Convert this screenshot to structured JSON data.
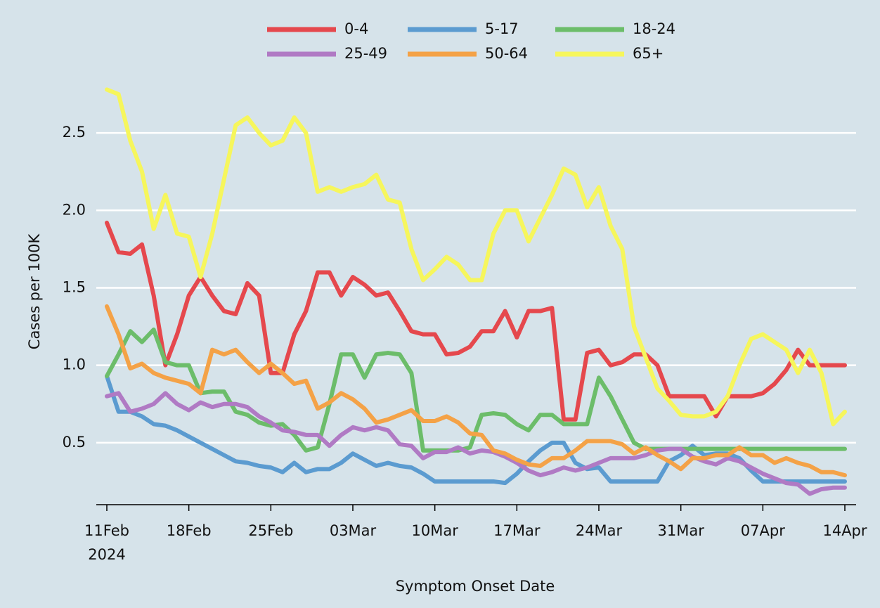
{
  "chart_data": {
    "type": "line",
    "x_label": "Symptom Onset Date",
    "y_label": "Cases per 100K",
    "x": [
      "2024-02-11",
      "2024-02-12",
      "2024-02-13",
      "2024-02-14",
      "2024-02-15",
      "2024-02-16",
      "2024-02-17",
      "2024-02-18",
      "2024-02-19",
      "2024-02-20",
      "2024-02-21",
      "2024-02-22",
      "2024-02-23",
      "2024-02-24",
      "2024-02-25",
      "2024-02-26",
      "2024-02-27",
      "2024-02-28",
      "2024-02-29",
      "2024-03-01",
      "2024-03-02",
      "2024-03-03",
      "2024-03-04",
      "2024-03-05",
      "2024-03-06",
      "2024-03-07",
      "2024-03-08",
      "2024-03-09",
      "2024-03-10",
      "2024-03-11",
      "2024-03-12",
      "2024-03-13",
      "2024-03-14",
      "2024-03-15",
      "2024-03-16",
      "2024-03-17",
      "2024-03-18",
      "2024-03-19",
      "2024-03-20",
      "2024-03-21",
      "2024-03-22",
      "2024-03-23",
      "2024-03-24",
      "2024-03-25",
      "2024-03-26",
      "2024-03-27",
      "2024-03-28",
      "2024-03-29",
      "2024-03-30",
      "2024-03-31",
      "2024-04-01",
      "2024-04-02",
      "2024-04-03",
      "2024-04-04",
      "2024-04-05",
      "2024-04-06",
      "2024-04-07",
      "2024-04-08",
      "2024-04-09",
      "2024-04-10",
      "2024-04-11",
      "2024-04-12",
      "2024-04-13",
      "2024-04-14"
    ],
    "xlim": [
      "2024-02-11",
      "2024-04-14"
    ],
    "xticks": [
      {
        "value": "2024-02-11",
        "label": "11Feb\n2024"
      },
      {
        "value": "2024-02-18",
        "label": "18Feb"
      },
      {
        "value": "2024-02-25",
        "label": "25Feb"
      },
      {
        "value": "2024-03-03",
        "label": "03Mar"
      },
      {
        "value": "2024-03-10",
        "label": "10Mar"
      },
      {
        "value": "2024-03-17",
        "label": "17Mar"
      },
      {
        "value": "2024-03-24",
        "label": "24Mar"
      },
      {
        "value": "2024-03-31",
        "label": "31Mar"
      },
      {
        "value": "2024-04-07",
        "label": "07Apr"
      },
      {
        "value": "2024-04-14",
        "label": "14Apr"
      }
    ],
    "ylim": [
      0.1,
      2.85
    ],
    "yticks": [
      {
        "value": 0.5,
        "label": "0.5"
      },
      {
        "value": 1.0,
        "label": "1.0"
      },
      {
        "value": 1.5,
        "label": "1.5"
      },
      {
        "value": 2.0,
        "label": "2.0"
      },
      {
        "value": 2.5,
        "label": "2.5"
      }
    ],
    "grid": true,
    "legend": "top",
    "series": [
      {
        "name": "0-4",
        "color": "#e5484d",
        "values": [
          1.92,
          1.73,
          1.72,
          1.78,
          1.45,
          1.0,
          1.2,
          1.45,
          1.57,
          1.45,
          1.35,
          1.33,
          1.53,
          1.45,
          0.95,
          0.95,
          1.2,
          1.35,
          1.6,
          1.6,
          1.45,
          1.57,
          1.52,
          1.45,
          1.47,
          1.35,
          1.22,
          1.2,
          1.2,
          1.07,
          1.08,
          1.12,
          1.22,
          1.22,
          1.35,
          1.18,
          1.35,
          1.35,
          1.37,
          0.65,
          0.65,
          1.08,
          1.1,
          1.0,
          1.02,
          1.07,
          1.07,
          1.0,
          0.8,
          0.8,
          0.8,
          0.8,
          0.67,
          0.8,
          0.8,
          0.8,
          0.82,
          0.88,
          0.97,
          1.1,
          1.0,
          1.0,
          1.0,
          1.0
        ]
      },
      {
        "name": "5-17",
        "color": "#5b9bd0",
        "values": [
          0.93,
          0.7,
          0.7,
          0.67,
          0.62,
          0.61,
          0.58,
          0.54,
          0.5,
          0.46,
          0.42,
          0.38,
          0.37,
          0.35,
          0.34,
          0.31,
          0.37,
          0.31,
          0.33,
          0.33,
          0.37,
          0.43,
          0.39,
          0.35,
          0.37,
          0.35,
          0.34,
          0.3,
          0.25,
          0.25,
          0.25,
          0.25,
          0.25,
          0.25,
          0.24,
          0.3,
          0.38,
          0.45,
          0.5,
          0.5,
          0.37,
          0.33,
          0.34,
          0.25,
          0.25,
          0.25,
          0.25,
          0.25,
          0.38,
          0.42,
          0.48,
          0.42,
          0.43,
          0.43,
          0.4,
          0.32,
          0.25,
          0.25,
          0.25,
          0.25,
          0.25,
          0.25,
          0.25,
          0.25
        ]
      },
      {
        "name": "18-24",
        "color": "#6cbd6a",
        "values": [
          0.93,
          1.07,
          1.22,
          1.15,
          1.23,
          1.02,
          1.0,
          1.0,
          0.82,
          0.83,
          0.83,
          0.7,
          0.68,
          0.63,
          0.61,
          0.62,
          0.55,
          0.45,
          0.47,
          0.75,
          1.07,
          1.07,
          0.92,
          1.07,
          1.08,
          1.07,
          0.95,
          0.45,
          0.45,
          0.45,
          0.45,
          0.47,
          0.68,
          0.69,
          0.68,
          0.62,
          0.58,
          0.68,
          0.68,
          0.62,
          0.62,
          0.62,
          0.92,
          0.8,
          0.65,
          0.5,
          0.46,
          0.46,
          0.46,
          0.46,
          0.46,
          0.46,
          0.46,
          0.46,
          0.46,
          0.46,
          0.46,
          0.46,
          0.46,
          0.46,
          0.46,
          0.46,
          0.46,
          0.46
        ]
      },
      {
        "name": "25-49",
        "color": "#b07ac4",
        "values": [
          0.8,
          0.82,
          0.7,
          0.72,
          0.75,
          0.82,
          0.75,
          0.71,
          0.76,
          0.73,
          0.75,
          0.75,
          0.73,
          0.67,
          0.63,
          0.58,
          0.57,
          0.55,
          0.55,
          0.48,
          0.55,
          0.6,
          0.58,
          0.6,
          0.58,
          0.49,
          0.48,
          0.4,
          0.44,
          0.44,
          0.47,
          0.43,
          0.45,
          0.44,
          0.41,
          0.37,
          0.32,
          0.29,
          0.31,
          0.34,
          0.32,
          0.34,
          0.37,
          0.4,
          0.4,
          0.4,
          0.42,
          0.45,
          0.46,
          0.46,
          0.41,
          0.38,
          0.36,
          0.4,
          0.38,
          0.34,
          0.3,
          0.27,
          0.24,
          0.23,
          0.17,
          0.2,
          0.21,
          0.21
        ]
      },
      {
        "name": "50-64",
        "color": "#f4a247",
        "values": [
          1.38,
          1.2,
          0.98,
          1.01,
          0.95,
          0.92,
          0.9,
          0.88,
          0.82,
          1.1,
          1.07,
          1.1,
          1.02,
          0.95,
          1.01,
          0.95,
          0.88,
          0.9,
          0.72,
          0.76,
          0.82,
          0.78,
          0.72,
          0.63,
          0.65,
          0.68,
          0.71,
          0.64,
          0.64,
          0.67,
          0.63,
          0.56,
          0.55,
          0.45,
          0.43,
          0.39,
          0.36,
          0.35,
          0.4,
          0.4,
          0.45,
          0.51,
          0.51,
          0.51,
          0.49,
          0.43,
          0.47,
          0.42,
          0.38,
          0.33,
          0.4,
          0.4,
          0.42,
          0.42,
          0.47,
          0.42,
          0.42,
          0.37,
          0.4,
          0.37,
          0.35,
          0.31,
          0.31,
          0.29
        ]
      },
      {
        "name": "65+",
        "color": "#f6f65c",
        "values": [
          2.78,
          2.75,
          2.45,
          2.25,
          1.88,
          2.1,
          1.85,
          1.83,
          1.57,
          1.85,
          2.2,
          2.55,
          2.6,
          2.5,
          2.42,
          2.45,
          2.6,
          2.5,
          2.12,
          2.15,
          2.12,
          2.15,
          2.17,
          2.23,
          2.07,
          2.05,
          1.75,
          1.55,
          1.62,
          1.7,
          1.65,
          1.55,
          1.55,
          1.85,
          2.0,
          2.0,
          1.8,
          1.95,
          2.1,
          2.27,
          2.23,
          2.02,
          2.15,
          1.9,
          1.75,
          1.25,
          1.05,
          0.85,
          0.77,
          0.68,
          0.67,
          0.67,
          0.7,
          0.8,
          1.0,
          1.17,
          1.2,
          1.15,
          1.1,
          0.95,
          1.1,
          0.95,
          0.62,
          0.7
        ]
      }
    ]
  }
}
